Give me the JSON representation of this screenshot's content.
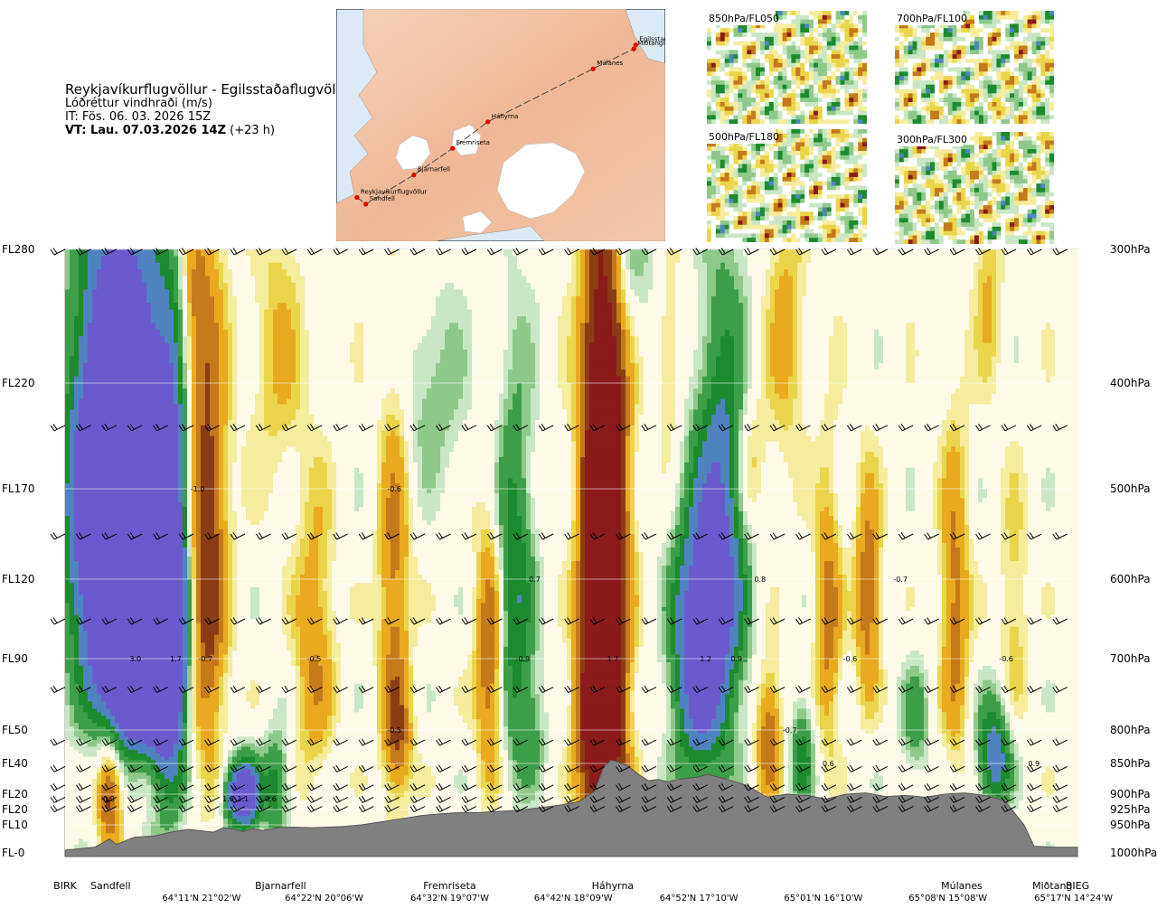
{
  "header": {
    "route": "Reykjavíkurflugvöllur - Egilsstaðaflugvöllur",
    "variable": "Lóðréttur vindhraði (m/s)",
    "init_time": "IT: Fös. 06. 03. 2026 15Z",
    "valid_label": "VT: Lau. 07.03.2026 14Z",
    "valid_offset": "(+23 h)"
  },
  "inset_map": {
    "places": [
      {
        "name": "Reykjavíkurflugvöllur",
        "lon": -21.94,
        "lat": 64.13
      },
      {
        "name": "Sandfell",
        "lon": -21.7,
        "lat": 64.08
      },
      {
        "name": "Bjarnarfell",
        "lon": -20.4,
        "lat": 64.3
      },
      {
        "name": "Fremriseta",
        "lon": -19.35,
        "lat": 64.5
      },
      {
        "name": "Háhyrna",
        "lon": -18.4,
        "lat": 64.7
      },
      {
        "name": "Múlanes",
        "lon": -15.55,
        "lat": 65.1
      },
      {
        "name": "Miðtangi",
        "lon": -14.45,
        "lat": 65.25
      },
      {
        "name": "Egilsstaðir",
        "lon": -14.4,
        "lat": 65.28
      }
    ]
  },
  "mini_maps": [
    {
      "label": "850hPa/FL050"
    },
    {
      "label": "700hPa/FL100"
    },
    {
      "label": "500hPa/FL180"
    },
    {
      "label": "300hPa/FL300"
    }
  ],
  "colors": {
    "strong_up": "#6a5acd",
    "up2": "#4f83c0",
    "up1": "#1c8a2e",
    "up_mid": "#3d9e4a",
    "up_light": "#8ec98a",
    "up_faint": "#c9e7c4",
    "down_faint": "#f5ec9e",
    "down1": "#ead54a",
    "down2": "#e9aa1f",
    "down3": "#c47a1b",
    "down_mid": "#8a3c14",
    "strong_down": "#8b1a1a",
    "terrain": "#808080"
  },
  "chart_data": {
    "type": "heatmap",
    "title": "Lóðréttur vindhraði (m/s)",
    "x_stations": [
      {
        "name": "BIRK",
        "d": 0.0
      },
      {
        "name": "Sandfell",
        "d": 0.046
      },
      {
        "name": "Bjarnarfell",
        "d": 0.218
      },
      {
        "name": "Fremriseta",
        "d": 0.389
      },
      {
        "name": "Háhyrna",
        "d": 0.554
      },
      {
        "name": "Múlanes",
        "d": 0.907
      },
      {
        "name": "Miðtangi",
        "d": 1.0
      },
      {
        "name": "BIEG",
        "d": 1.024
      }
    ],
    "x_coords": [
      {
        "label": "64°11'N 21°02'W",
        "d": 0.138
      },
      {
        "label": "64°22'N 20°06'W",
        "d": 0.262
      },
      {
        "label": "64°32'N 19°07'W",
        "d": 0.389
      },
      {
        "label": "64°42'N 18°09'W",
        "d": 0.514
      },
      {
        "label": "64°52'N 17°10'W",
        "d": 0.641
      },
      {
        "label": "65°01'N 16°10'W",
        "d": 0.767
      },
      {
        "label": "65°08'N 15°08'W",
        "d": 0.893
      },
      {
        "label": "65°17'N 14°24'W",
        "d": 1.02
      }
    ],
    "fl_ticks": [
      {
        "label": "FL280",
        "fl": 280
      },
      {
        "label": "FL220",
        "fl": 220
      },
      {
        "label": "FL170",
        "fl": 170
      },
      {
        "label": "FL120",
        "fl": 120
      },
      {
        "label": "FL90",
        "fl": 90
      },
      {
        "label": "FL50",
        "fl": 50
      },
      {
        "label": "FL40",
        "fl": 40
      },
      {
        "label": "FL20",
        "fl": 20
      },
      {
        "label": "FL20",
        "fl": 20
      },
      {
        "label": "FL10",
        "fl": 10
      },
      {
        "label": "FL-0",
        "fl": 0
      }
    ],
    "pressure_ticks": [
      {
        "label": "300hPa",
        "p": 300
      },
      {
        "label": "400hPa",
        "p": 400
      },
      {
        "label": "500hPa",
        "p": 500
      },
      {
        "label": "600hPa",
        "p": 600
      },
      {
        "label": "700hPa",
        "p": 700
      },
      {
        "label": "800hPa",
        "p": 800
      },
      {
        "label": "850hPa",
        "p": 850
      },
      {
        "label": "900hPa",
        "p": 900
      },
      {
        "label": "925hPa",
        "p": 925
      },
      {
        "label": "950hPa",
        "p": 950
      },
      {
        "label": "1000hPa",
        "p": 1000
      }
    ],
    "ylim_hpa": [
      1000,
      300
    ],
    "contour_levels": [
      -1.0,
      -0.7,
      -0.5,
      -0.3,
      -0.2,
      -0.1,
      0.1,
      0.2,
      0.3,
      0.5,
      0.7,
      1.0
    ],
    "cells": [
      {
        "d": 0.055,
        "p": 520,
        "w": 3.2,
        "sx": 0.03,
        "sy": 150
      },
      {
        "d": 0.078,
        "p": 710,
        "w": 3.0,
        "sx": 0.02,
        "sy": 60
      },
      {
        "d": 0.105,
        "p": 640,
        "w": 1.7,
        "sx": 0.013,
        "sy": 170
      },
      {
        "d": 0.045,
        "p": 900,
        "w": -0.9,
        "sx": 0.009,
        "sy": 60
      },
      {
        "d": 0.143,
        "p": 570,
        "w": -1.0,
        "sx": 0.014,
        "sy": 180
      },
      {
        "d": 0.13,
        "p": 340,
        "w": -0.4,
        "sx": 0.01,
        "sy": 50
      },
      {
        "d": 0.172,
        "p": 900,
        "w": 1.0,
        "sx": 0.009,
        "sy": 40
      },
      {
        "d": 0.186,
        "p": 900,
        "w": 1.1,
        "sx": 0.008,
        "sy": 40
      },
      {
        "d": 0.213,
        "p": 890,
        "w": 0.6,
        "sx": 0.01,
        "sy": 60
      },
      {
        "d": 0.252,
        "p": 690,
        "w": -0.5,
        "sx": 0.014,
        "sy": 130
      },
      {
        "d": 0.213,
        "p": 380,
        "w": -0.3,
        "sx": 0.02,
        "sy": 80
      },
      {
        "d": 0.333,
        "p": 620,
        "w": -0.6,
        "sx": 0.011,
        "sy": 160
      },
      {
        "d": 0.337,
        "p": 820,
        "w": -0.5,
        "sx": 0.01,
        "sy": 60
      },
      {
        "d": 0.372,
        "p": 410,
        "w": 0.3,
        "sx": 0.022,
        "sy": 60
      },
      {
        "d": 0.454,
        "p": 620,
        "w": 0.7,
        "sx": 0.014,
        "sy": 160
      },
      {
        "d": 0.472,
        "p": 800,
        "w": 0.3,
        "sx": 0.01,
        "sy": 60
      },
      {
        "d": 0.43,
        "p": 700,
        "w": -0.8,
        "sx": 0.01,
        "sy": 120
      },
      {
        "d": 0.545,
        "p": 610,
        "w": -2.2,
        "sx": 0.015,
        "sy": 300
      },
      {
        "d": 0.562,
        "p": 310,
        "w": 0.5,
        "sx": 0.02,
        "sy": 40
      },
      {
        "d": 0.528,
        "p": 780,
        "w": -0.5,
        "sx": 0.01,
        "sy": 60
      },
      {
        "d": 0.64,
        "p": 690,
        "w": 1.3,
        "sx": 0.018,
        "sy": 120
      },
      {
        "d": 0.665,
        "p": 560,
        "w": 1.0,
        "sx": 0.018,
        "sy": 160
      },
      {
        "d": 0.692,
        "p": 480,
        "w": -0.4,
        "sx": 0.012,
        "sy": 50
      },
      {
        "d": 0.612,
        "p": 380,
        "w": -0.3,
        "sx": 0.01,
        "sy": 60
      },
      {
        "d": 0.712,
        "p": 810,
        "w": -0.7,
        "sx": 0.009,
        "sy": 70
      },
      {
        "d": 0.746,
        "p": 840,
        "w": 0.6,
        "sx": 0.008,
        "sy": 60
      },
      {
        "d": 0.772,
        "p": 650,
        "w": -0.6,
        "sx": 0.009,
        "sy": 120
      },
      {
        "d": 0.812,
        "p": 620,
        "w": -0.7,
        "sx": 0.009,
        "sy": 90
      },
      {
        "d": 0.73,
        "p": 360,
        "w": -0.35,
        "sx": 0.014,
        "sy": 80
      },
      {
        "d": 0.86,
        "p": 790,
        "w": 0.4,
        "sx": 0.01,
        "sy": 60
      },
      {
        "d": 0.9,
        "p": 640,
        "w": -0.6,
        "sx": 0.01,
        "sy": 140
      },
      {
        "d": 0.94,
        "p": 840,
        "w": 0.9,
        "sx": 0.012,
        "sy": 60
      },
      {
        "d": 0.935,
        "p": 330,
        "w": -0.3,
        "sx": 0.01,
        "sy": 50
      },
      {
        "d": 0.96,
        "p": 640,
        "w": -0.3,
        "sx": 0.01,
        "sy": 100
      }
    ],
    "value_labels": [
      {
        "text": "-1.0",
        "d": 0.134,
        "p": 500
      },
      {
        "text": "3.0",
        "d": 0.071,
        "p": 700
      },
      {
        "text": "1.7",
        "d": 0.112,
        "p": 700
      },
      {
        "text": "-0.7",
        "d": 0.142,
        "p": 700
      },
      {
        "text": "-0.9",
        "d": 0.043,
        "p": 907
      },
      {
        "text": "1.0",
        "d": 0.165,
        "p": 907
      },
      {
        "text": "1.1",
        "d": 0.18,
        "p": 907
      },
      {
        "text": "0.6",
        "d": 0.208,
        "p": 907
      },
      {
        "text": "-0.5",
        "d": 0.252,
        "p": 700
      },
      {
        "text": "-0.6",
        "d": 0.333,
        "p": 500
      },
      {
        "text": "-0.5",
        "d": 0.333,
        "p": 800
      },
      {
        "text": "0.7",
        "d": 0.475,
        "p": 600
      },
      {
        "text": "-0.9",
        "d": 0.463,
        "p": 700
      },
      {
        "text": "1.7",
        "d": 0.554,
        "p": 700
      },
      {
        "text": "1.2",
        "d": 0.648,
        "p": 700
      },
      {
        "text": "0.9",
        "d": 0.679,
        "p": 700
      },
      {
        "text": "0.8",
        "d": 0.703,
        "p": 600
      },
      {
        "text": "-0.7",
        "d": 0.733,
        "p": 800
      },
      {
        "text": "0.6",
        "d": 0.772,
        "p": 850
      },
      {
        "text": "-0.6",
        "d": 0.794,
        "p": 700
      },
      {
        "text": "-0.7",
        "d": 0.845,
        "p": 600
      },
      {
        "text": "-0.6",
        "d": 0.952,
        "p": 700
      },
      {
        "text": "0.9",
        "d": 0.98,
        "p": 850
      }
    ],
    "terrain_profile_hpa": [
      [
        0.0,
        995
      ],
      [
        0.03,
        990
      ],
      [
        0.045,
        975
      ],
      [
        0.052,
        985
      ],
      [
        0.07,
        972
      ],
      [
        0.09,
        970
      ],
      [
        0.11,
        962
      ],
      [
        0.125,
        958
      ],
      [
        0.135,
        960
      ],
      [
        0.15,
        963
      ],
      [
        0.16,
        955
      ],
      [
        0.172,
        958
      ],
      [
        0.18,
        962
      ],
      [
        0.19,
        957
      ],
      [
        0.2,
        960
      ],
      [
        0.215,
        955
      ],
      [
        0.23,
        954
      ],
      [
        0.25,
        955
      ],
      [
        0.28,
        953
      ],
      [
        0.3,
        950
      ],
      [
        0.32,
        945
      ],
      [
        0.34,
        940
      ],
      [
        0.36,
        935
      ],
      [
        0.38,
        932
      ],
      [
        0.4,
        930
      ],
      [
        0.42,
        930
      ],
      [
        0.44,
        928
      ],
      [
        0.46,
        926
      ],
      [
        0.48,
        922
      ],
      [
        0.5,
        918
      ],
      [
        0.52,
        912
      ],
      [
        0.535,
        896
      ],
      [
        0.545,
        855
      ],
      [
        0.552,
        845
      ],
      [
        0.56,
        848
      ],
      [
        0.57,
        855
      ],
      [
        0.58,
        868
      ],
      [
        0.59,
        878
      ],
      [
        0.6,
        876
      ],
      [
        0.61,
        880
      ],
      [
        0.62,
        876
      ],
      [
        0.64,
        872
      ],
      [
        0.65,
        868
      ],
      [
        0.67,
        876
      ],
      [
        0.69,
        886
      ],
      [
        0.71,
        905
      ],
      [
        0.73,
        900
      ],
      [
        0.75,
        902
      ],
      [
        0.77,
        908
      ],
      [
        0.79,
        900
      ],
      [
        0.81,
        898
      ],
      [
        0.83,
        904
      ],
      [
        0.85,
        902
      ],
      [
        0.87,
        905
      ],
      [
        0.89,
        900
      ],
      [
        0.91,
        898
      ],
      [
        0.93,
        902
      ],
      [
        0.95,
        910
      ],
      [
        0.97,
        950
      ],
      [
        0.98,
        988
      ],
      [
        1.0,
        990
      ],
      [
        1.024,
        990
      ]
    ]
  }
}
